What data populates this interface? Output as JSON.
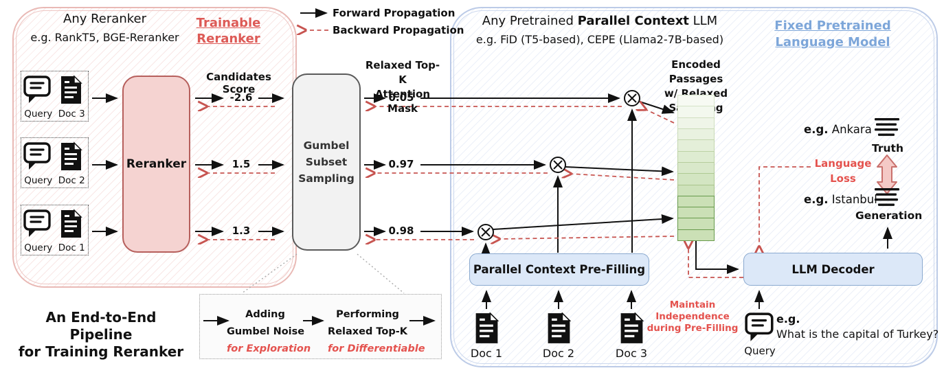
{
  "legend": {
    "forward_label": "Forward Propagation",
    "backward_label": "Backward Propagation"
  },
  "reranker_panel": {
    "title": "Any Reranker",
    "subtitle": "e.g. RankT5, BGE-Reranker",
    "badge": {
      "line1": "Trainable",
      "line2": "Reranker"
    },
    "pairs": [
      {
        "query": "Query",
        "doc": "Doc 3"
      },
      {
        "query": "Query",
        "doc": "Doc 2"
      },
      {
        "query": "Query",
        "doc": "Doc 1"
      }
    ],
    "reranker_box_label": "Reranker",
    "scores_header": "Candidates Score",
    "scores": [
      "-2.6",
      "1.5",
      "1.3"
    ]
  },
  "gumbel": {
    "line1": "Gumbel",
    "line2": "Subset",
    "line3": "Sampling",
    "steps": {
      "s1a": "Adding",
      "s1b": "Gumbel Noise",
      "s1note": "for Exploration",
      "s2a": "Performing",
      "s2b": "Relaxed Top-K",
      "s2note": "for Differentiable"
    }
  },
  "mask": {
    "header1": "Relaxed Top-K",
    "header2": "Attention Mask",
    "values": [
      "0.05",
      "0.97",
      "0.98"
    ]
  },
  "caption": {
    "line1": "An End-to-End Pipeline",
    "line2": "for Training Reranker"
  },
  "llm_panel": {
    "title_prefix": "Any Pretrained ",
    "title_bold": "Parallel Context",
    "title_suffix": " LLM",
    "subtitle": "e.g. FiD (T5-based), CEPE (Llama2-7B-based)",
    "badge": {
      "line1": "Fixed Pretrained",
      "line2": "Language Model"
    },
    "stack_header1": "Encoded Passages",
    "stack_header2": "w/ Relaxed Sampling",
    "prefill_label": "Parallel Context Pre-Filling",
    "decoder_label": "LLM Decoder",
    "docs": [
      "Doc 1",
      "Doc 2",
      "Doc 3"
    ],
    "maintain1": "Maintain Independence",
    "maintain2": "during  Pre-Filling",
    "query": {
      "label": "Query",
      "eg": "e.g.",
      "question": "What is the capital of Turkey?"
    },
    "truth": {
      "eg": "e.g.",
      "word": "Ankara",
      "label": "Truth"
    },
    "generation": {
      "eg": "e.g.",
      "word": "Istanbul",
      "label": "Generation"
    },
    "loss": {
      "line1": "Language",
      "line2": "Loss"
    },
    "stack_cells": [
      {
        "fill": "#f7faf3",
        "border": "#d9e6cd",
        "strong": false
      },
      {
        "fill": "#f3f8ee",
        "border": "#d5e3c7",
        "strong": false
      },
      {
        "fill": "#eff5e8",
        "border": "#d0dfc0",
        "strong": false
      },
      {
        "fill": "#e9f2e0",
        "border": "#cadbb8",
        "strong": false
      },
      {
        "fill": "#e4efd9",
        "border": "#c3d6ae",
        "strong": false
      },
      {
        "fill": "#deecd1",
        "border": "#bdd2a5",
        "strong": false
      },
      {
        "fill": "#d9e8ca",
        "border": "#b6cd9c",
        "strong": false
      },
      {
        "fill": "#d3e5c2",
        "border": "#afc993",
        "strong": false
      },
      {
        "fill": "#cee2bb",
        "border": "#a9c48b",
        "strong": false
      },
      {
        "fill": "#cbe0b6",
        "border": "#679a4b",
        "strong": true
      },
      {
        "fill": "#cbe0b6",
        "border": "#679a4b",
        "strong": true
      },
      {
        "fill": "#cbe0b6",
        "border": "#679a4b",
        "strong": true
      },
      {
        "fill": "#cbe0b6",
        "border": "#679a4b",
        "strong": true
      }
    ]
  },
  "icons": {
    "query_icon": "speech-bubble-icon",
    "doc_icon": "document-icon",
    "text_icon": "text-lines-icon",
    "multiply_icon": "circled-times-icon",
    "loss_arrow": "double-headed-arrow-icon"
  },
  "colors": {
    "forward_arrow": "#111111",
    "backward_arrow": "#c75450",
    "red_accent": "#e4524e",
    "red_badge": "#dd5a56",
    "blue_badge": "#7da6d9",
    "reranker_fill": "#f5d3d1",
    "reranker_border": "#b65f5c",
    "panel_pink_border": "#e9b9b5",
    "panel_blue_border": "#bccbe7",
    "blue_box_fill": "#dce8f8",
    "blue_box_border": "#8aa9cf",
    "gumbel_fill": "#f2f2f2",
    "gumbel_border": "#5a5a5a",
    "passage_green_dark_border": "#679a4b"
  }
}
